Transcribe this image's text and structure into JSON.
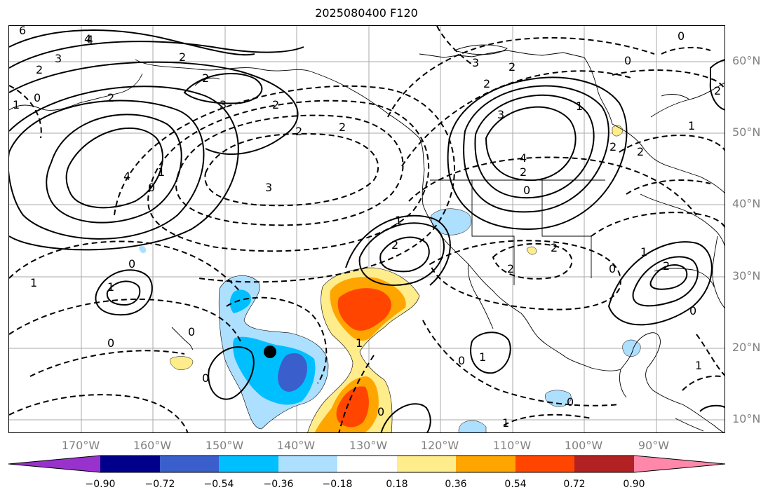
{
  "title": "2025080400 F120",
  "axes": {
    "lat_labels": [
      "60°N",
      "50°N",
      "40°N",
      "30°N",
      "20°N",
      "10°N"
    ],
    "lon_labels": [
      "170°W",
      "160°W",
      "150°W",
      "140°W",
      "130°W",
      "120°W",
      "110°W",
      "100°W",
      "90°W"
    ]
  },
  "colorbar": {
    "labels": [
      "−0.90",
      "−0.72",
      "−0.54",
      "−0.36",
      "−0.18",
      "0.18",
      "0.36",
      "0.54",
      "0.72",
      "0.90"
    ],
    "colors": [
      "#9932CC",
      "#00008B",
      "#3A5FCD",
      "#00BFFF",
      "#ADDFFF",
      "#FFFFFF",
      "#FFEC8B",
      "#FFA500",
      "#FF4500",
      "#B22222",
      "#FF88AA"
    ]
  },
  "contour_labels": [
    "6",
    "4",
    "3",
    "2",
    "2",
    "2",
    "4",
    "2",
    "3",
    "3",
    "1",
    "2",
    "0",
    "0",
    "1",
    "2",
    "2",
    "4",
    "3",
    "2",
    "1",
    "0",
    "2",
    "2",
    "4",
    "3",
    "2",
    "0",
    "1",
    "0",
    "2",
    "2",
    "2",
    "2",
    "1",
    "1",
    "0",
    "0",
    "1",
    "2",
    "2",
    "0",
    "0",
    "1",
    "1",
    "1",
    "1",
    "0",
    "0",
    "0",
    "0",
    "0",
    "1"
  ],
  "marker": "storm-center-marker"
}
